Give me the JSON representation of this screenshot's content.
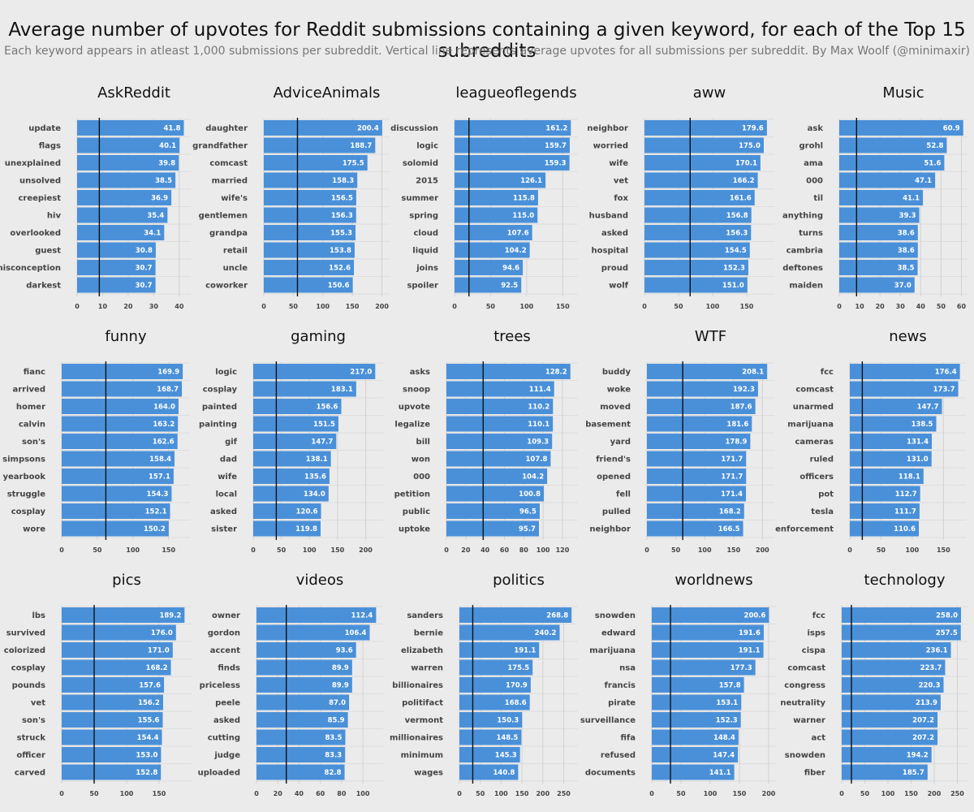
{
  "title": "Average number of upvotes for Reddit submissions containing a given keyword, for each of the Top 15 subreddits",
  "subtitle": "Each keyword appears in atleast 1,000 submissions per subreddit. Vertical line represents average upvotes for all submissions per subreddit. By Max Woolf (@minimaxir)",
  "colors": {
    "bar": "#4a90d9",
    "background": "#ebebeb",
    "grid": "#d2d2d2",
    "avg_line": "#111111",
    "label": "#444444",
    "value_label": "#ffffff"
  },
  "chart_data": [
    {
      "type": "bar",
      "orientation": "horizontal",
      "title": "AskReddit",
      "categories": [
        "update",
        "flags",
        "unexplained",
        "unsolved",
        "creepiest",
        "hiv",
        "overlooked",
        "guest",
        "misconception",
        "darkest"
      ],
      "values": [
        41.8,
        40.1,
        39.8,
        38.5,
        36.9,
        35.4,
        34.1,
        30.8,
        30.7,
        30.7
      ],
      "value_labels": [
        "41.8",
        "40.1",
        "39.8",
        "38.5",
        "36.9",
        "35.4",
        "34.1",
        "30.8",
        "30.7",
        "30.7"
      ],
      "average": 8.7,
      "xlim": [
        0,
        44.5
      ],
      "ticks": [
        0,
        10,
        20,
        30,
        40
      ],
      "grid": true
    },
    {
      "type": "bar",
      "orientation": "horizontal",
      "title": "AdviceAnimals",
      "categories": [
        "daughter",
        "grandfather",
        "comcast",
        "married",
        "wife's",
        "gentlemen",
        "grandpa",
        "retail",
        "uncle",
        "coworker"
      ],
      "values": [
        200.4,
        188.7,
        175.5,
        158.3,
        156.5,
        156.3,
        155.3,
        153.8,
        152.6,
        150.6
      ],
      "value_labels": [
        "200.4",
        "188.7",
        "175.5",
        "158.3",
        "156.5",
        "156.3",
        "155.3",
        "153.8",
        "152.6",
        "150.6"
      ],
      "average": 57,
      "xlim": [
        0,
        213
      ],
      "ticks": [
        0,
        50,
        100,
        150,
        200
      ],
      "grid": true
    },
    {
      "type": "bar",
      "orientation": "horizontal",
      "title": "leagueoflegends",
      "categories": [
        "discussion",
        "logic",
        "solomid",
        "2015",
        "summer",
        "spring",
        "cloud",
        "liquid",
        "joins",
        "spoiler"
      ],
      "values": [
        161.2,
        159.7,
        159.3,
        126.1,
        115.8,
        115.0,
        107.6,
        104.2,
        94.6,
        92.5
      ],
      "value_labels": [
        "161.2",
        "159.7",
        "159.3",
        "126.1",
        "115.8",
        "115.0",
        "107.6",
        "104.2",
        "94.6",
        "92.5"
      ],
      "average": 20,
      "xlim": [
        0,
        171
      ],
      "ticks": [
        0,
        50,
        100,
        150
      ],
      "grid": true
    },
    {
      "type": "bar",
      "orientation": "horizontal",
      "title": "aww",
      "categories": [
        "neighbor",
        "worried",
        "wife",
        "vet",
        "fox",
        "husband",
        "asked",
        "hospital",
        "proud",
        "wolf"
      ],
      "values": [
        179.6,
        175.0,
        170.1,
        166.2,
        161.6,
        156.8,
        156.3,
        154.5,
        152.3,
        151.0
      ],
      "value_labels": [
        "179.6",
        "175.0",
        "170.1",
        "166.2",
        "161.6",
        "156.8",
        "156.3",
        "154.5",
        "152.3",
        "151.0"
      ],
      "average": 67,
      "xlim": [
        0,
        190.5
      ],
      "ticks": [
        0,
        50,
        100,
        150
      ],
      "grid": true
    },
    {
      "type": "bar",
      "orientation": "horizontal",
      "title": "Music",
      "categories": [
        "ask",
        "grohl",
        "ama",
        "000",
        "til",
        "anything",
        "turns",
        "cambria",
        "deftones",
        "maiden"
      ],
      "values": [
        60.9,
        52.8,
        51.6,
        47.1,
        41.1,
        39.3,
        38.6,
        38.6,
        38.5,
        37.0
      ],
      "value_labels": [
        "60.9",
        "52.8",
        "51.6",
        "47.1",
        "41.1",
        "39.3",
        "38.6",
        "38.6",
        "38.5",
        "37.0"
      ],
      "average": 8.5,
      "xlim": [
        0,
        63
      ],
      "ticks": [
        0,
        10,
        20,
        30,
        40,
        50,
        60
      ],
      "grid": true
    },
    {
      "type": "bar",
      "orientation": "horizontal",
      "title": "funny",
      "categories": [
        "fianc",
        "arrived",
        "homer",
        "calvin",
        "son's",
        "simpsons",
        "yearbook",
        "struggle",
        "cosplay",
        "wore"
      ],
      "values": [
        169.9,
        168.7,
        164.0,
        163.2,
        162.6,
        158.4,
        157.1,
        154.3,
        152.1,
        150.2
      ],
      "value_labels": [
        "169.9",
        "168.7",
        "164.0",
        "163.2",
        "162.6",
        "158.4",
        "157.1",
        "154.3",
        "152.1",
        "150.2"
      ],
      "average": 62,
      "xlim": [
        0,
        180
      ],
      "ticks": [
        0,
        50,
        100,
        150
      ],
      "grid": true
    },
    {
      "type": "bar",
      "orientation": "horizontal",
      "title": "gaming",
      "categories": [
        "logic",
        "cosplay",
        "painted",
        "painting",
        "gif",
        "dad",
        "wife",
        "local",
        "asked",
        "sister"
      ],
      "values": [
        217.0,
        183.1,
        156.6,
        151.5,
        147.7,
        138.1,
        135.6,
        134.0,
        120.6,
        119.8
      ],
      "value_labels": [
        "217.0",
        "183.1",
        "156.6",
        "151.5",
        "147.7",
        "138.1",
        "135.6",
        "134.0",
        "120.6",
        "119.8"
      ],
      "average": 41,
      "xlim": [
        0,
        231
      ],
      "ticks": [
        0,
        50,
        100,
        150,
        200
      ],
      "grid": true
    },
    {
      "type": "bar",
      "orientation": "horizontal",
      "title": "trees",
      "categories": [
        "asks",
        "snoop",
        "upvote",
        "legalize",
        "bill",
        "won",
        "000",
        "petition",
        "public",
        "uptoke"
      ],
      "values": [
        128.2,
        111.4,
        110.2,
        110.1,
        109.3,
        107.8,
        104.2,
        100.8,
        96.5,
        95.7
      ],
      "value_labels": [
        "128.2",
        "111.4",
        "110.2",
        "110.1",
        "109.3",
        "107.8",
        "104.2",
        "100.8",
        "96.5",
        "95.7"
      ],
      "average": 38,
      "xlim": [
        0,
        136
      ],
      "ticks": [
        0,
        20,
        40,
        60,
        80,
        100,
        120
      ],
      "grid": true
    },
    {
      "type": "bar",
      "orientation": "horizontal",
      "title": "WTF",
      "categories": [
        "buddy",
        "woke",
        "moved",
        "basement",
        "yard",
        "friend's",
        "opened",
        "fell",
        "pulled",
        "neighbor"
      ],
      "values": [
        208.1,
        192.3,
        187.6,
        181.6,
        178.9,
        171.7,
        171.7,
        171.4,
        168.2,
        166.5
      ],
      "value_labels": [
        "208.1",
        "192.3",
        "187.6",
        "181.6",
        "178.9",
        "171.7",
        "171.7",
        "171.4",
        "168.2",
        "166.5"
      ],
      "average": 62,
      "xlim": [
        0,
        220.5
      ],
      "ticks": [
        0,
        50,
        100,
        150,
        200
      ],
      "grid": true
    },
    {
      "type": "bar",
      "orientation": "horizontal",
      "title": "news",
      "categories": [
        "fcc",
        "comcast",
        "unarmed",
        "marijuana",
        "cameras",
        "ruled",
        "officers",
        "pot",
        "tesla",
        "enforcement"
      ],
      "values": [
        176.4,
        173.7,
        147.7,
        138.5,
        131.4,
        131.0,
        118.1,
        112.7,
        111.7,
        110.6
      ],
      "value_labels": [
        "176.4",
        "173.7",
        "147.7",
        "138.5",
        "131.4",
        "131.0",
        "118.1",
        "112.7",
        "111.7",
        "110.6"
      ],
      "average": 20,
      "xlim": [
        0,
        186
      ],
      "ticks": [
        0,
        50,
        100,
        150
      ],
      "grid": true
    },
    {
      "type": "bar",
      "orientation": "horizontal",
      "title": "pics",
      "categories": [
        "lbs",
        "survived",
        "colorized",
        "cosplay",
        "pounds",
        "vet",
        "son's",
        "struck",
        "officer",
        "carved"
      ],
      "values": [
        189.2,
        176.0,
        171.0,
        168.2,
        157.6,
        156.2,
        155.6,
        154.4,
        153.0,
        152.8
      ],
      "value_labels": [
        "189.2",
        "176.0",
        "171.0",
        "168.2",
        "157.6",
        "156.2",
        "155.6",
        "154.4",
        "153.0",
        "152.8"
      ],
      "average": 50,
      "xlim": [
        0,
        200
      ],
      "ticks": [
        0,
        50,
        100,
        150
      ],
      "grid": true
    },
    {
      "type": "bar",
      "orientation": "horizontal",
      "title": "videos",
      "categories": [
        "owner",
        "gordon",
        "accent",
        "finds",
        "priceless",
        "peele",
        "asked",
        "cutting",
        "judge",
        "uploaded"
      ],
      "values": [
        112.4,
        106.4,
        93.6,
        89.9,
        89.9,
        87.0,
        85.9,
        83.5,
        83.3,
        82.8
      ],
      "value_labels": [
        "112.4",
        "106.4",
        "93.6",
        "89.9",
        "89.9",
        "87.0",
        "85.9",
        "83.5",
        "83.3",
        "82.8"
      ],
      "average": 28,
      "xlim": [
        0,
        119
      ],
      "ticks": [
        0,
        20,
        40,
        60,
        80,
        100
      ],
      "grid": true
    },
    {
      "type": "bar",
      "orientation": "horizontal",
      "title": "politics",
      "categories": [
        "sanders",
        "bernie",
        "elizabeth",
        "warren",
        "billionaires",
        "politifact",
        "vermont",
        "millionaires",
        "minimum",
        "wages"
      ],
      "values": [
        268.8,
        240.2,
        191.1,
        175.5,
        170.9,
        168.6,
        150.3,
        148.5,
        145.3,
        140.8
      ],
      "value_labels": [
        "268.8",
        "240.2",
        "191.1",
        "175.5",
        "170.9",
        "168.6",
        "150.3",
        "148.5",
        "145.3",
        "140.8"
      ],
      "average": 32,
      "xlim": [
        0,
        284
      ],
      "ticks": [
        0,
        50,
        100,
        150,
        200,
        250
      ],
      "grid": true
    },
    {
      "type": "bar",
      "orientation": "horizontal",
      "title": "worldnews",
      "categories": [
        "snowden",
        "edward",
        "marijuana",
        "nsa",
        "francis",
        "pirate",
        "surveillance",
        "fifa",
        "refused",
        "documents"
      ],
      "values": [
        200.6,
        191.6,
        191.1,
        177.3,
        157.8,
        153.1,
        152.3,
        148.4,
        147.4,
        141.1
      ],
      "value_labels": [
        "200.6",
        "191.6",
        "191.1",
        "177.3",
        "157.8",
        "153.1",
        "152.3",
        "148.4",
        "147.4",
        "141.1"
      ],
      "average": 32,
      "xlim": [
        0,
        212.5
      ],
      "ticks": [
        0,
        50,
        100,
        150,
        200
      ],
      "grid": true
    },
    {
      "type": "bar",
      "orientation": "horizontal",
      "title": "technology",
      "categories": [
        "fcc",
        "isps",
        "cispa",
        "comcast",
        "congress",
        "neutrality",
        "warner",
        "act",
        "snowden",
        "fiber"
      ],
      "values": [
        258.0,
        257.5,
        236.1,
        223.7,
        220.3,
        213.9,
        207.2,
        207.2,
        194.2,
        185.7
      ],
      "value_labels": [
        "258.0",
        "257.5",
        "236.1",
        "223.7",
        "220.3",
        "213.9",
        "207.2",
        "207.2",
        "194.2",
        "185.7"
      ],
      "average": 21,
      "xlim": [
        0,
        272
      ],
      "ticks": [
        0,
        50,
        100,
        150,
        200,
        250
      ],
      "grid": true
    }
  ]
}
